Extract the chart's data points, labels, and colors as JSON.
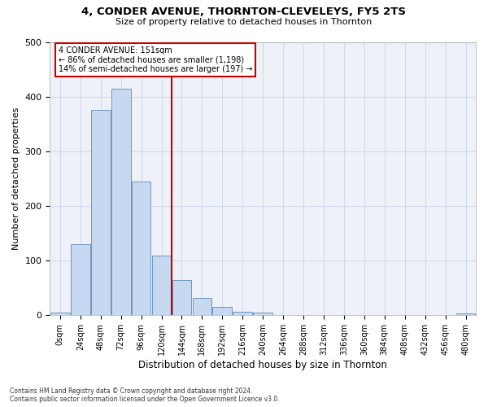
{
  "title1": "4, CONDER AVENUE, THORNTON-CLEVELEYS, FY5 2TS",
  "title2": "Size of property relative to detached houses in Thornton",
  "xlabel": "Distribution of detached houses by size in Thornton",
  "ylabel": "Number of detached properties",
  "bin_labels": [
    "0sqm",
    "24sqm",
    "48sqm",
    "72sqm",
    "96sqm",
    "120sqm",
    "144sqm",
    "168sqm",
    "192sqm",
    "216sqm",
    "240sqm",
    "264sqm",
    "288sqm",
    "312sqm",
    "336sqm",
    "360sqm",
    "384sqm",
    "408sqm",
    "432sqm",
    "456sqm",
    "480sqm"
  ],
  "bar_values": [
    5,
    130,
    375,
    415,
    245,
    110,
    65,
    32,
    15,
    7,
    5,
    1,
    1,
    1,
    0,
    0,
    0,
    0,
    0,
    0,
    3
  ],
  "bar_color": "#c6d9f0",
  "bar_edge_color": "#7096c0",
  "grid_color": "#d0d8e8",
  "background_color": "#eef2f8",
  "red_line_x": 5.5,
  "red_line_color": "#cc0000",
  "annotation_text_line1": "4 CONDER AVENUE: 151sqm",
  "annotation_text_line2": "← 86% of detached houses are smaller (1,198)",
  "annotation_text_line3": "14% of semi-detached houses are larger (197) →",
  "annotation_box_color": "#cc0000",
  "ylim": [
    0,
    500
  ],
  "footer": "Contains HM Land Registry data © Crown copyright and database right 2024.\nContains public sector information licensed under the Open Government Licence v3.0."
}
